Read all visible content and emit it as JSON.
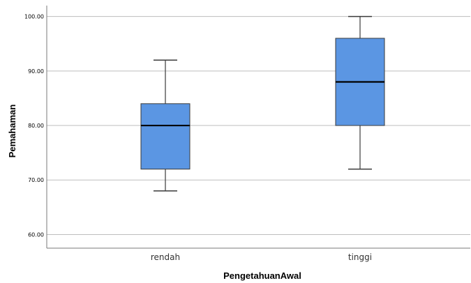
{
  "chart_data": {
    "type": "boxplot",
    "xlabel": "PengetahuanAwal",
    "ylabel": "Pemahaman",
    "ylim": [
      57.5,
      102
    ],
    "yticks": [
      60,
      70,
      80,
      90,
      100
    ],
    "ytick_labels": [
      "60.00",
      "70.00",
      "80.00",
      "90.00",
      "100.00"
    ],
    "grid": "horizontal",
    "colors": {
      "box_fill": "#5b96e3",
      "box_stroke": "#3a3a3a",
      "median": "#000000",
      "grid": "#bdbdbd",
      "axis": "#7a7a7a"
    },
    "categories": [
      "rendah",
      "tinggi"
    ],
    "boxes": [
      {
        "category": "rendah",
        "min": 68,
        "q1": 72,
        "median": 80,
        "q3": 84,
        "max": 92
      },
      {
        "category": "tinggi",
        "min": 72,
        "q1": 80,
        "median": 88,
        "q3": 96,
        "max": 100
      }
    ]
  }
}
